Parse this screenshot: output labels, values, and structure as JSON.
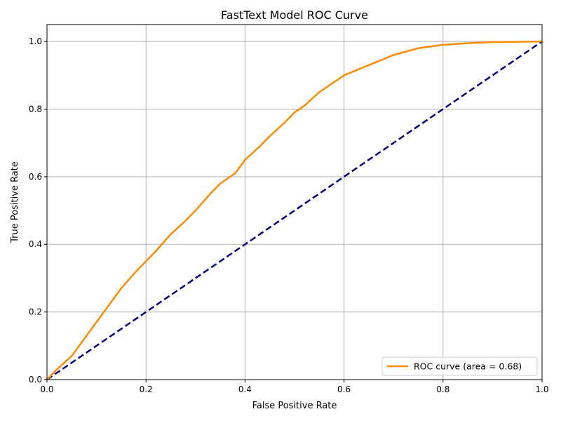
{
  "chart_data": {
    "type": "line",
    "title": "FastText Model ROC Curve",
    "xlabel": "False Positive Rate",
    "ylabel": "True Positive Rate",
    "xlim": [
      0.0,
      1.0
    ],
    "ylim": [
      0.0,
      1.05
    ],
    "x_ticks": [
      "0.0",
      "0.2",
      "0.4",
      "0.6",
      "0.8",
      "1.0"
    ],
    "y_ticks": [
      "0.0",
      "0.2",
      "0.4",
      "0.6",
      "0.8",
      "1.0"
    ],
    "grid": true,
    "legend_placement": "lower-right",
    "series": [
      {
        "name": "ROC curve (area = 0.68)",
        "color": "#ff8c00",
        "style": "solid",
        "x": [
          0.0,
          0.02,
          0.05,
          0.08,
          0.1,
          0.12,
          0.15,
          0.18,
          0.2,
          0.22,
          0.25,
          0.28,
          0.3,
          0.33,
          0.35,
          0.38,
          0.4,
          0.43,
          0.45,
          0.48,
          0.5,
          0.52,
          0.55,
          0.58,
          0.6,
          0.65,
          0.7,
          0.75,
          0.8,
          0.85,
          0.9,
          0.95,
          1.0
        ],
        "y": [
          0.0,
          0.03,
          0.07,
          0.13,
          0.17,
          0.21,
          0.27,
          0.32,
          0.35,
          0.38,
          0.43,
          0.47,
          0.5,
          0.55,
          0.58,
          0.61,
          0.65,
          0.69,
          0.72,
          0.76,
          0.79,
          0.81,
          0.85,
          0.88,
          0.9,
          0.93,
          0.96,
          0.98,
          0.99,
          0.995,
          0.998,
          0.999,
          1.0
        ]
      },
      {
        "name": "",
        "color": "#000080",
        "style": "dashed",
        "x": [
          0.0,
          1.0
        ],
        "y": [
          0.0,
          1.0
        ]
      }
    ]
  }
}
